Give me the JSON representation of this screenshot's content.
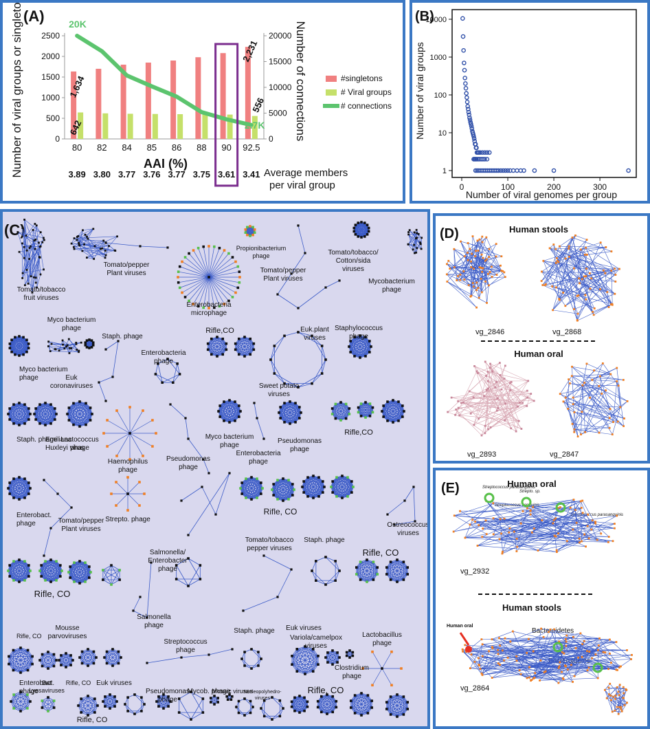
{
  "colors": {
    "panel_border": "#3b78c4",
    "network_bg": "#d9d8ee",
    "singletons": "#f08080",
    "viral_groups": "#c5e06a",
    "connections": "#5cc46e",
    "highlight_box": "#7b2d8e",
    "scatter_point": "#2f4fa8",
    "edge": "#3b5bc7",
    "node_dark": "#111111",
    "node_orange": "#f07f23",
    "node_green": "#58c04a",
    "node_pink": "#c8879a"
  },
  "chart_data": [
    {
      "panel": "(A)",
      "type": "bar",
      "categories": [
        "80",
        "82",
        "84",
        "85",
        "86",
        "88",
        "90",
        "92.5"
      ],
      "xlabel": "AAI (%)",
      "ylabel": "Number of viral groups or singletons",
      "y2label": "Number of connections",
      "ylim": [
        0,
        2500
      ],
      "y2lim": [
        0,
        20000
      ],
      "yticks": [
        "2500",
        "2000",
        "1500",
        "1000",
        "500",
        "0"
      ],
      "y2ticks": [
        "20000",
        "15000",
        "10000",
        "5000",
        "0"
      ],
      "series": [
        {
          "name": "#singletons",
          "type": "bar",
          "values": [
            1634,
            1700,
            1800,
            1850,
            1900,
            1980,
            2080,
            2231
          ]
        },
        {
          "name": "# Viral groups",
          "type": "bar",
          "values": [
            642,
            620,
            610,
            605,
            600,
            595,
            590,
            556
          ]
        },
        {
          "name": "# connections",
          "type": "line",
          "axis": "right",
          "values": [
            20000,
            17000,
            12300,
            10200,
            8200,
            5200,
            3800,
            2700
          ]
        }
      ],
      "data_labels": {
        "conn_first": "20K",
        "conn_last": "2.7K",
        "singletons_first": "1,634",
        "singletons_last": "2,231",
        "groups_first": "642",
        "groups_last": "556"
      },
      "avg_members": [
        "3.89",
        "3.80",
        "3.77",
        "3.76",
        "3.77",
        "3.75",
        "3.61",
        "3.41"
      ],
      "avg_members_label_1": "Average members",
      "avg_members_label_2": "per viral group",
      "highlight_category": "90"
    },
    {
      "panel": "(B)",
      "type": "scatter",
      "xlabel": "Number of viral genomes per group",
      "ylabel": "Number of viral groups",
      "log_y": true,
      "xlim": [
        0,
        370
      ],
      "ylim": [
        1,
        10000
      ],
      "xticks": [
        "0",
        "100",
        "200",
        "300"
      ],
      "yticks": [
        "10000",
        "1000",
        "100",
        "10",
        "1"
      ],
      "points": [
        [
          2,
          10500
        ],
        [
          3,
          3500
        ],
        [
          4,
          1500
        ],
        [
          5,
          700
        ],
        [
          6,
          450
        ],
        [
          7,
          280
        ],
        [
          8,
          200
        ],
        [
          9,
          150
        ],
        [
          10,
          110
        ],
        [
          11,
          85
        ],
        [
          12,
          65
        ],
        [
          13,
          50
        ],
        [
          14,
          42
        ],
        [
          15,
          35
        ],
        [
          16,
          30
        ],
        [
          17,
          25
        ],
        [
          18,
          22
        ],
        [
          19,
          19
        ],
        [
          20,
          17
        ],
        [
          21,
          15
        ],
        [
          22,
          13
        ],
        [
          23,
          11
        ],
        [
          24,
          10
        ],
        [
          25,
          9
        ],
        [
          26,
          8
        ],
        [
          27,
          7
        ],
        [
          28,
          6
        ],
        [
          29,
          5
        ],
        [
          30,
          5
        ],
        [
          31,
          4
        ],
        [
          32,
          4
        ],
        [
          33,
          3
        ],
        [
          35,
          3
        ],
        [
          37,
          3
        ],
        [
          40,
          3
        ],
        [
          45,
          3
        ],
        [
          50,
          3
        ],
        [
          55,
          3
        ],
        [
          60,
          3
        ],
        [
          26,
          2
        ],
        [
          28,
          2
        ],
        [
          30,
          2
        ],
        [
          32,
          2
        ],
        [
          35,
          2
        ],
        [
          38,
          2
        ],
        [
          42,
          2
        ],
        [
          46,
          2
        ],
        [
          50,
          2
        ],
        [
          55,
          2
        ],
        [
          30,
          1
        ],
        [
          33,
          1
        ],
        [
          36,
          1
        ],
        [
          40,
          1
        ],
        [
          44,
          1
        ],
        [
          48,
          1
        ],
        [
          52,
          1
        ],
        [
          56,
          1
        ],
        [
          60,
          1
        ],
        [
          64,
          1
        ],
        [
          68,
          1
        ],
        [
          72,
          1
        ],
        [
          76,
          1
        ],
        [
          80,
          1
        ],
        [
          85,
          1
        ],
        [
          90,
          1
        ],
        [
          95,
          1
        ],
        [
          100,
          1
        ],
        [
          105,
          1
        ],
        [
          112,
          1
        ],
        [
          120,
          1
        ],
        [
          128,
          1
        ],
        [
          135,
          1
        ],
        [
          158,
          1
        ],
        [
          200,
          1
        ],
        [
          362,
          1
        ]
      ]
    }
  ],
  "panel_c": {
    "label": "(C)",
    "labels": [
      "Tomato/tobacco fruit viruses",
      "Tomato/pepper Plant viruses",
      "Enterobacteria microphage",
      "Propionibacterium phage",
      "Tomato/pepper Plant viruses",
      "Tomato/tobacco/ Cotton/sida viruses",
      "Mycobacterium phage",
      "Myco bacterium phage",
      "Staph. phage",
      "Enterobacteria phage",
      "Rifle,CO",
      "Euk.plant viruses",
      "Staphylococcus phage",
      "Myco bacterium phage",
      "Euk coronaviruses",
      "Sweet potato viruses",
      "Staph. phage",
      "Emiliana Huxleyi virus",
      "Lactococcus phage",
      "Haemophilus phage",
      "Pseudomonas phage",
      "Myco bacterium phage",
      "Enterobacteria phage",
      "Pseudomonas phage",
      "Rifle,CO",
      "Enterobact. phage",
      "Tomato/pepper Plant viruses",
      "Strepto. phage",
      "Rifle, CO",
      "Ostreococcus viruses",
      "Tomato/tobacco pepper viruses",
      "Staph. phage",
      "Rifle, CO",
      "Salmonella/ Enterobacter phage",
      "Rifle, CO",
      "Salmonella phage",
      "Rifle, CO",
      "Mousse parvoviruses",
      "Streptococcus phage",
      "Staph. phage",
      "Euk viruses",
      "Variola/camelpox viruses",
      "Lactobacillus phage",
      "Bat Lyssaviruses",
      "Rifle, CO",
      "Euk viruses",
      "Clostridium phage",
      "Enterobact. phage",
      "Pseudomonas phage",
      "Mycob. phage",
      "Mosaic viruses",
      "Nucleopolyhedro- viruses",
      "Rifle, CO",
      "Rifle, CO"
    ]
  },
  "panel_d": {
    "label": "(D)",
    "title_top": "Human stools",
    "title_bottom": "Human oral",
    "vgs": [
      "vg_2846",
      "vg_2868",
      "vg_2893",
      "vg_2847"
    ]
  },
  "panel_e": {
    "label": "(E)",
    "title_top": "Human oral",
    "title_bottom": "Human stools",
    "vgs": [
      "vg_2932",
      "vg_2864"
    ],
    "annotations": [
      "Streptococcus parasanguinis",
      "Strepto. sp.",
      "Streptococcus sanguinis",
      "Streptococcus parasanguinis",
      "Human oral",
      "Bacteroidetes",
      "Bacteroidetes"
    ]
  }
}
